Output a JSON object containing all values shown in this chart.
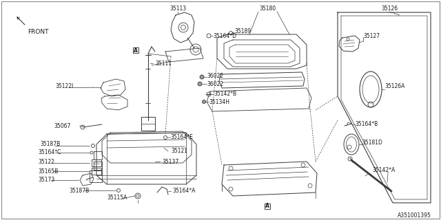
{
  "bg_color": "#ffffff",
  "part_number_ref": "A351001395",
  "lc": "#3a3a3a",
  "tc": "#1a1a1a",
  "fs": 5.5,
  "labels": {
    "front": "FRONT",
    "35113": "35113",
    "35189": "35189",
    "35180": "35180",
    "35127": "35127",
    "35126": "35126",
    "35126A": "35126A",
    "35164D": "35164*D",
    "35164B": "35164*B",
    "35181D": "35181D",
    "35111": "35111",
    "35122I": "35122I",
    "35067": "35067",
    "36022a": "36022",
    "36022b": "36022",
    "35142B": "35142*B",
    "35134H": "35134H",
    "35164E": "35164*E",
    "35121": "35121",
    "35137": "35137",
    "35164A": "35164*A",
    "35115A": "35115A",
    "35187Ba": "35187B",
    "35187Bb": "35187B",
    "35164C": "35164*C",
    "35122": "35122",
    "35165B": "35165B",
    "35173": "35173",
    "35142A": "35142*A"
  }
}
